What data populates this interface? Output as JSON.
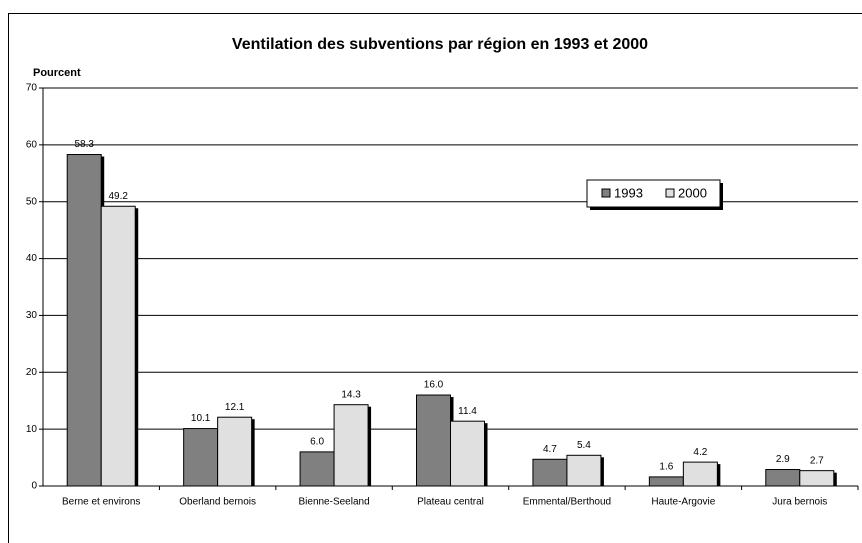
{
  "chart_data": {
    "type": "bar",
    "title": "Ventilation des subventions par région en 1993 et 2000",
    "y_label": "Pourcent",
    "categories": [
      "Berne et environs",
      "Oberland bernois",
      "Bienne-Seeland",
      "Plateau central",
      "Emmental/Berthoud",
      "Haute-Argovie",
      "Jura bernois"
    ],
    "series": [
      {
        "name": "1993",
        "color": "#808080",
        "values": [
          58.3,
          10.1,
          6.0,
          16.0,
          4.7,
          1.6,
          2.9
        ],
        "value_labels": [
          "58.3",
          "10.1",
          "6.0",
          "16.0",
          "4.7",
          "1.6",
          "2.9"
        ]
      },
      {
        "name": "2000",
        "color": "#e0e0e0",
        "values": [
          49.2,
          12.1,
          14.3,
          11.4,
          5.4,
          4.2,
          2.7
        ],
        "value_labels": [
          "49.2",
          "12.1",
          "14.3",
          "11.4",
          "5.4",
          "4.2",
          "2.7"
        ]
      }
    ],
    "ylim": [
      0,
      70
    ],
    "yticks": [
      0,
      10,
      20,
      30,
      40,
      50,
      60,
      70
    ],
    "grid": true,
    "legend": "upper right"
  }
}
